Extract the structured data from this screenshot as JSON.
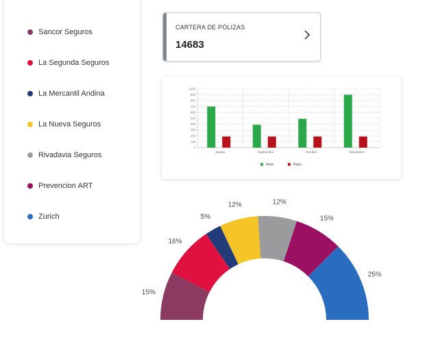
{
  "legend": {
    "items": [
      {
        "label": "Sancor Seguros",
        "color": "#8b3a62"
      },
      {
        "label": "La Segunda Seguros",
        "color": "#e0113f"
      },
      {
        "label": "La Mercantil Andina",
        "color": "#243b7a"
      },
      {
        "label": "La Nueva Seguros",
        "color": "#f5c427"
      },
      {
        "label": "Rivadavia Seguros",
        "color": "#9a9b9d"
      },
      {
        "label": "Prevencion ART",
        "color": "#9b1060"
      },
      {
        "label": "Zurich",
        "color": "#2a6dc0"
      }
    ]
  },
  "policy_card": {
    "title": "CARTERA DE PÓLIZAS",
    "value": "14683",
    "icon": "chevron-right-icon"
  },
  "chart_data": [
    {
      "type": "bar",
      "categories": [
        "Agosto",
        "Septiembre",
        "Octubre",
        "Noviembre"
      ],
      "series": [
        {
          "name": "Altas",
          "color": "#2aa84a",
          "values": [
            700,
            390,
            490,
            900
          ]
        },
        {
          "name": "Bajas",
          "color": "#b5121b",
          "values": [
            190,
            190,
            190,
            190
          ]
        }
      ],
      "y_ticks": [
        0,
        100,
        200,
        300,
        400,
        500,
        600,
        700,
        800,
        900,
        1000
      ],
      "ylim": [
        0,
        1000
      ],
      "grid": true,
      "legend_position": "bottom"
    },
    {
      "type": "pie",
      "shape": "half-donut",
      "slices": [
        {
          "label": "15%",
          "value": 15,
          "color": "#8b3a62"
        },
        {
          "label": "16%",
          "value": 16,
          "color": "#e0113f"
        },
        {
          "label": "5%",
          "value": 5,
          "color": "#243b7a"
        },
        {
          "label": "12%",
          "value": 12,
          "color": "#f5c427"
        },
        {
          "label": "12%",
          "value": 12,
          "color": "#9a9b9d"
        },
        {
          "label": "15%",
          "value": 15,
          "color": "#9b1060"
        },
        {
          "label": "25%",
          "value": 25,
          "color": "#2a6dc0"
        }
      ]
    }
  ]
}
